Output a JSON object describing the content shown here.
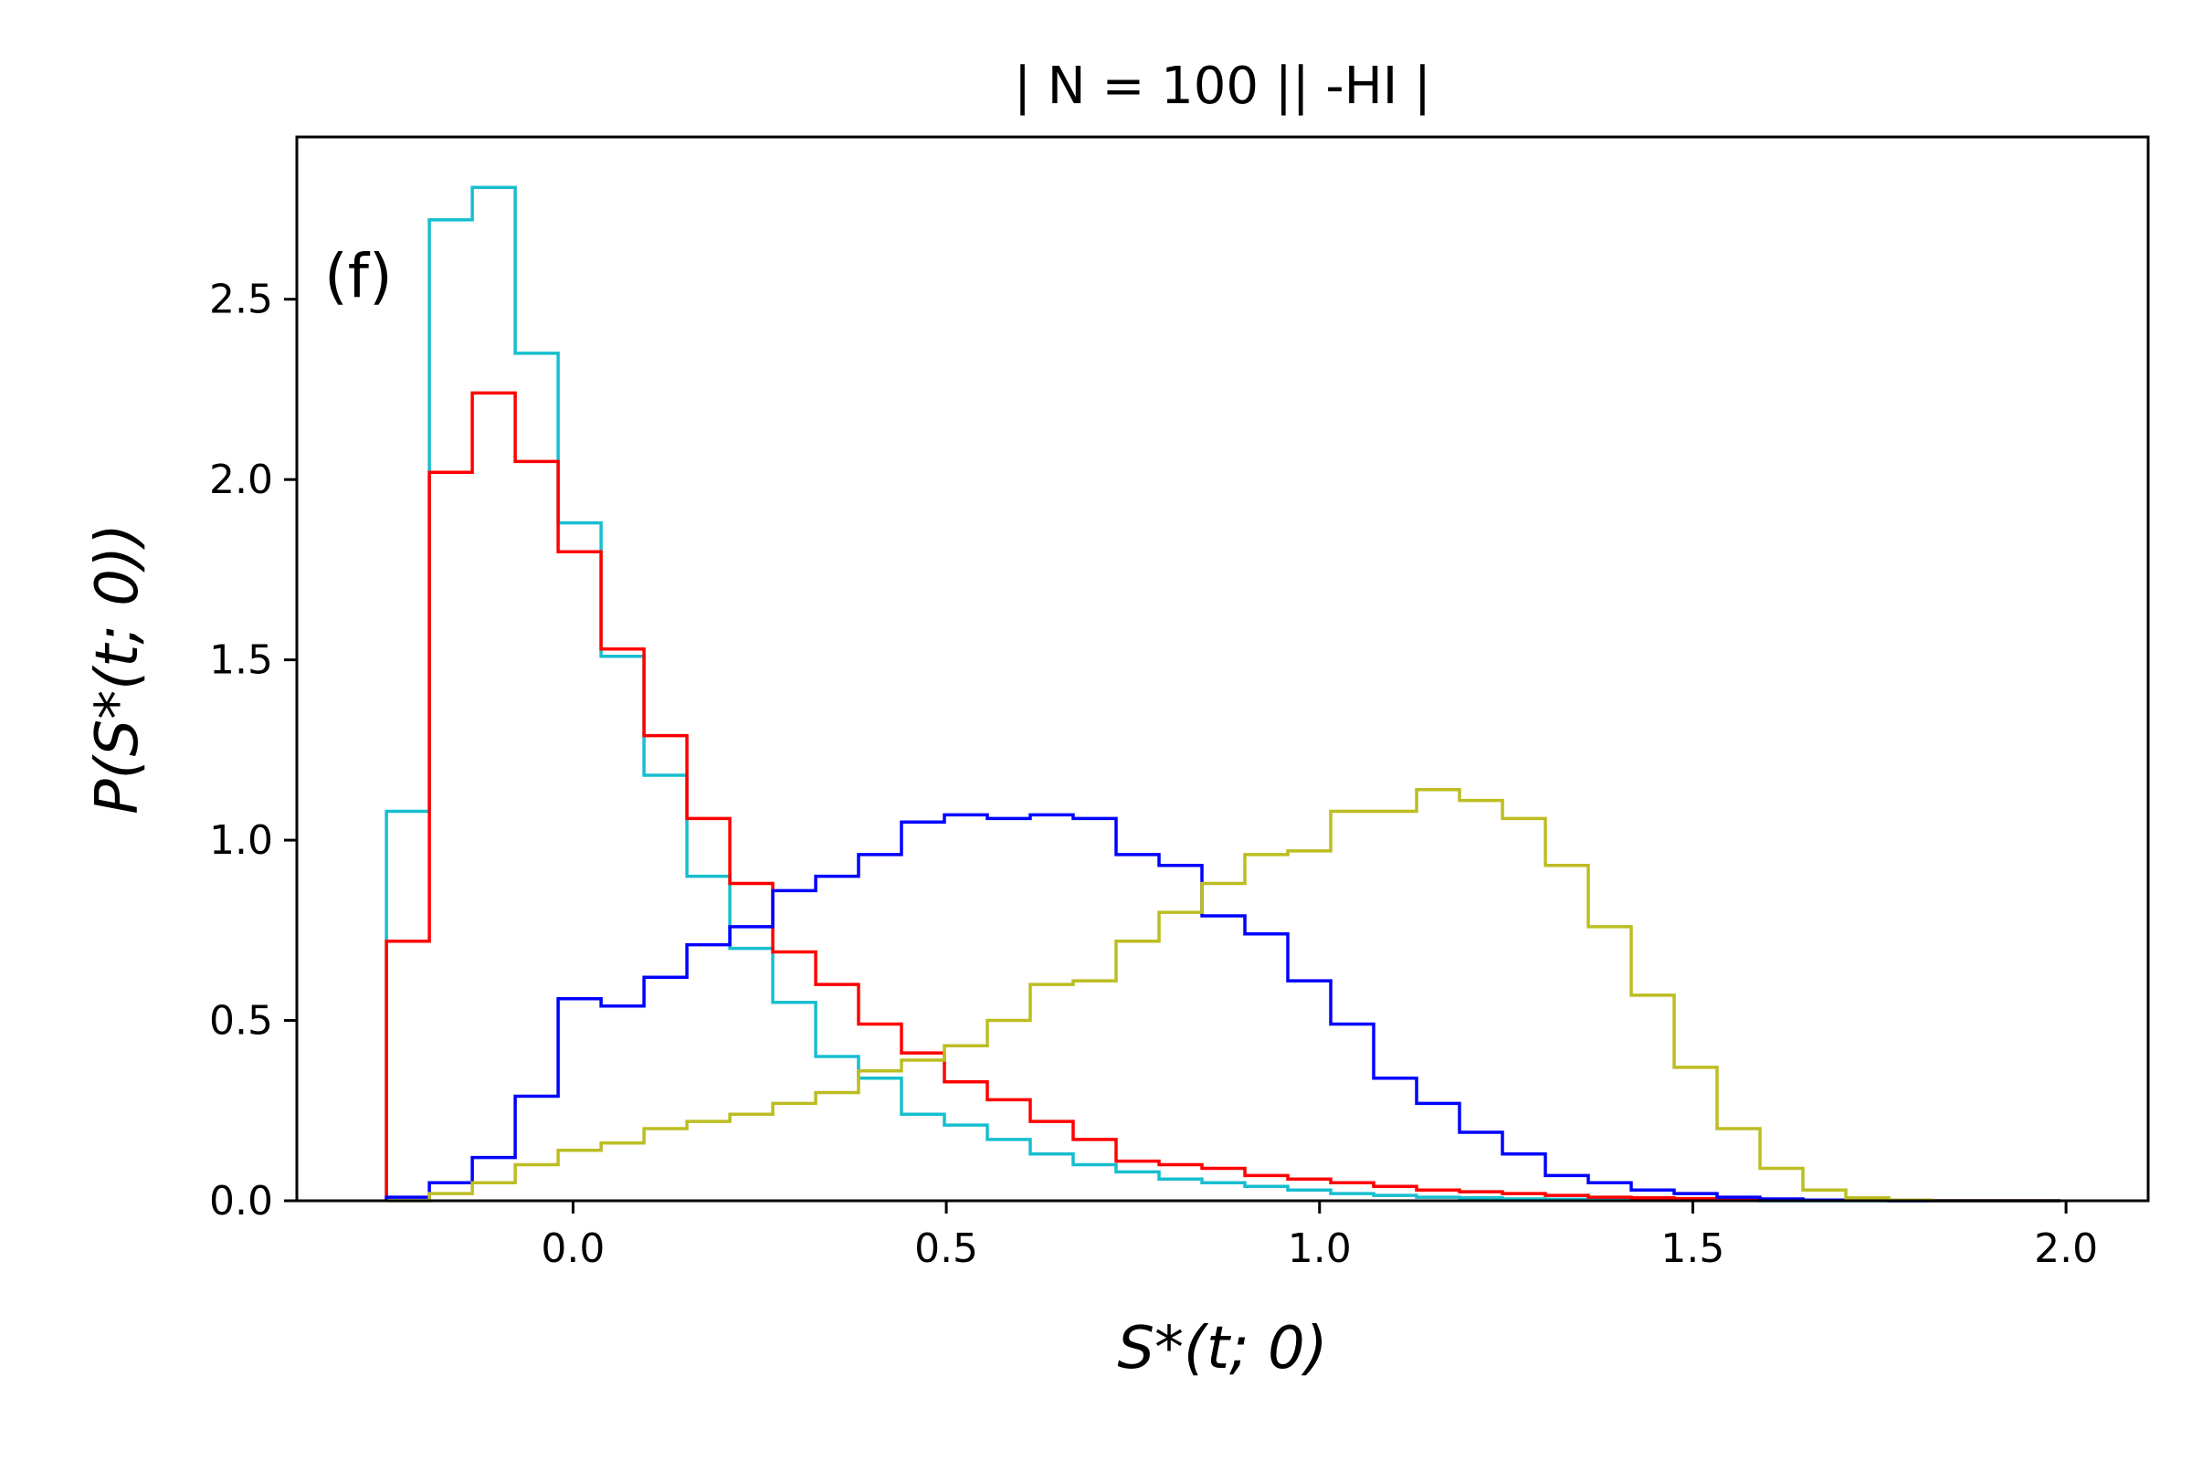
{
  "chart_data": {
    "type": "histogram-step",
    "title": "| N = 100 || -HI |",
    "panel_label": "(f)",
    "xlabel": "S*(t; 0)",
    "ylabel": "P(S*(t; 0))",
    "xlim": [
      -0.37,
      2.11
    ],
    "ylim": [
      0,
      2.95
    ],
    "xticks": [
      0.0,
      0.5,
      1.0,
      1.5,
      2.0
    ],
    "xtick_labels": [
      "0.0",
      "0.5",
      "1.0",
      "1.5",
      "2.0"
    ],
    "yticks": [
      0.0,
      0.5,
      1.0,
      1.5,
      2.0,
      2.5
    ],
    "ytick_labels": [
      "0.0",
      "0.5",
      "1.0",
      "1.5",
      "2.0",
      "2.5"
    ],
    "grid": false,
    "bin_edges": [
      -0.25,
      -0.1925,
      -0.135,
      -0.0775,
      -0.02,
      0.0375,
      0.095,
      0.1525,
      0.21,
      0.2675,
      0.325,
      0.3825,
      0.44,
      0.4975,
      0.555,
      0.6125,
      0.67,
      0.7275,
      0.785,
      0.8425,
      0.9,
      0.9575,
      1.015,
      1.0725,
      1.13,
      1.1875,
      1.245,
      1.3025,
      1.36,
      1.4175,
      1.475,
      1.5325,
      1.59,
      1.6475,
      1.705,
      1.7625,
      1.82,
      1.8775,
      1.935,
      1.9925
    ],
    "series": [
      {
        "color": "#17becf",
        "values": [
          1.08,
          2.72,
          2.81,
          2.35,
          1.88,
          1.51,
          1.18,
          0.9,
          0.7,
          0.55,
          0.4,
          0.34,
          0.24,
          0.21,
          0.17,
          0.13,
          0.1,
          0.08,
          0.06,
          0.05,
          0.04,
          0.03,
          0.02,
          0.015,
          0.01,
          0.008,
          0.005,
          0.004,
          0.003,
          0.002,
          0.001,
          0.001,
          0.0,
          0.0,
          0.0,
          0.0,
          0.0,
          0.0,
          0.0
        ]
      },
      {
        "color": "#ff0000",
        "values": [
          0.72,
          2.02,
          2.24,
          2.05,
          1.8,
          1.53,
          1.29,
          1.06,
          0.88,
          0.69,
          0.6,
          0.49,
          0.41,
          0.33,
          0.28,
          0.22,
          0.17,
          0.11,
          0.1,
          0.09,
          0.07,
          0.06,
          0.05,
          0.04,
          0.03,
          0.025,
          0.02,
          0.015,
          0.01,
          0.008,
          0.006,
          0.005,
          0.003,
          0.002,
          0.001,
          0.001,
          0.0,
          0.0,
          0.0
        ]
      },
      {
        "color": "#0000ff",
        "values": [
          0.01,
          0.05,
          0.12,
          0.29,
          0.56,
          0.54,
          0.62,
          0.71,
          0.76,
          0.86,
          0.9,
          0.96,
          1.05,
          1.07,
          1.06,
          1.07,
          1.06,
          0.96,
          0.93,
          0.79,
          0.74,
          0.61,
          0.49,
          0.34,
          0.27,
          0.19,
          0.13,
          0.07,
          0.05,
          0.03,
          0.02,
          0.01,
          0.005,
          0.002,
          0.001,
          0.0,
          0.0,
          0.0,
          0.0
        ]
      },
      {
        "color": "#bcbd22",
        "values": [
          0.0,
          0.02,
          0.05,
          0.1,
          0.14,
          0.16,
          0.2,
          0.22,
          0.24,
          0.27,
          0.3,
          0.36,
          0.39,
          0.43,
          0.5,
          0.6,
          0.61,
          0.72,
          0.8,
          0.88,
          0.96,
          0.97,
          1.08,
          1.08,
          1.14,
          1.11,
          1.06,
          0.93,
          0.76,
          0.57,
          0.37,
          0.2,
          0.09,
          0.03,
          0.008,
          0.002,
          0.0,
          0.0,
          0.0
        ]
      }
    ]
  }
}
